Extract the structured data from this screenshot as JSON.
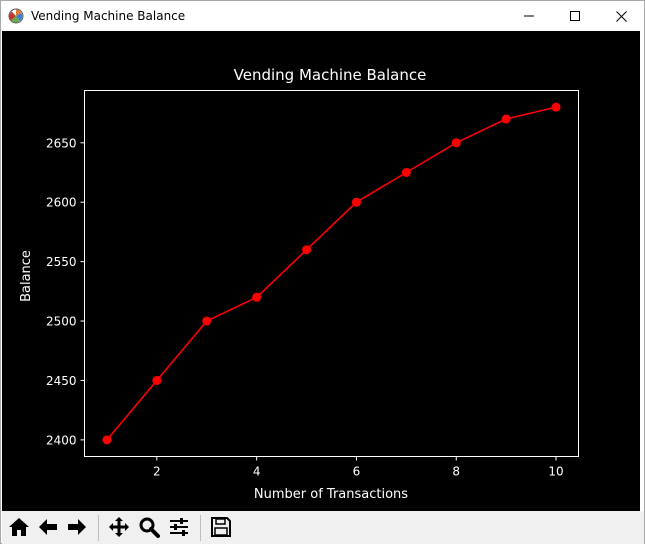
{
  "window": {
    "title": "Vending Machine Balance",
    "app_icon": "matplotlib-icon",
    "controls": [
      "minimize-icon",
      "maximize-icon",
      "close-icon"
    ]
  },
  "colors": {
    "figure_background": "#000000",
    "axes_edge": "#ffffff",
    "text": "#ffffff",
    "series": "#ff0000",
    "toolbar_background": "#f0f0f0"
  },
  "chart_data": {
    "type": "line",
    "title": "Vending Machine Balance",
    "xlabel": "Number of Transactions",
    "ylabel": "Balance",
    "x": [
      1,
      2,
      3,
      4,
      5,
      6,
      7,
      8,
      9,
      10
    ],
    "series": [
      {
        "values": [
          2400,
          2450,
          2500,
          2520,
          2560,
          2600,
          2625,
          2650,
          2670,
          2680
        ],
        "color": "#ff0000",
        "marker": "circle"
      }
    ],
    "xlim": [
      0.55,
      10.45
    ],
    "ylim": [
      2386,
      2694
    ],
    "xticks": [
      "2",
      "4",
      "6",
      "8",
      "10"
    ],
    "yticks": [
      "2400",
      "2450",
      "2500",
      "2550",
      "2600",
      "2650"
    ],
    "grid": false
  },
  "toolbar": {
    "buttons": [
      "home-icon",
      "back-arrow-icon",
      "forward-arrow-icon",
      "pan-icon",
      "zoom-icon",
      "configure-subplots-icon",
      "save-icon"
    ]
  }
}
